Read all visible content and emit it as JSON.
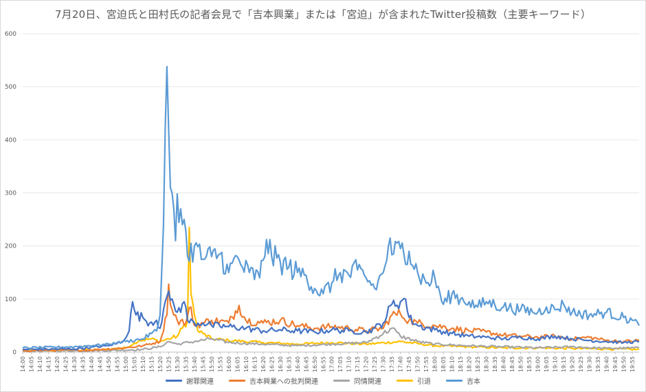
{
  "chart_data": {
    "type": "line",
    "title": "7月20日、宮迫氏と田村氏の記者会見で「吉本興業」または「宮迫」が含まれたTwitter投稿数（主要キーワード）",
    "xlabel": "",
    "ylabel": "",
    "ylim": [
      0,
      600
    ],
    "yticks": [
      "0",
      "100",
      "200",
      "300",
      "400",
      "500",
      "600"
    ],
    "grid": true,
    "legend_position": "bottom",
    "x_time_range": [
      "14:00",
      "19:59"
    ],
    "x_tick_step_minutes": 5,
    "x_tick_labels": [
      "14:00",
      "14:05",
      "14:10",
      "14:15",
      "14:20",
      "14:25",
      "14:30",
      "14:35",
      "14:40",
      "14:45",
      "14:50",
      "14:55",
      "15:00",
      "15:05",
      "15:10",
      "15:15",
      "15:20",
      "15:25",
      "15:30",
      "15:35",
      "15:40",
      "15:45",
      "15:50",
      "15:55",
      "16:00",
      "16:05",
      "16:10",
      "16:15",
      "16:20",
      "16:25",
      "16:30",
      "16:35",
      "16:40",
      "16:45",
      "16:50",
      "16:55",
      "17:00",
      "17:05",
      "17:10",
      "17:15",
      "17:20",
      "17:25",
      "17:30",
      "17:35",
      "17:40",
      "17:45",
      "17:50",
      "17:55",
      "18:00",
      "18:05",
      "18:10",
      "18:15",
      "18:20",
      "18:25",
      "18:30",
      "18:35",
      "18:40",
      "18:45",
      "18:50",
      "18:55",
      "19:00",
      "19:05",
      "19:10",
      "19:15",
      "19:20",
      "19:25",
      "19:30",
      "19:35",
      "19:40",
      "19:45",
      "19:50",
      "19:55"
    ],
    "series": [
      {
        "name": "謝罪関連",
        "color": "#4472c4",
        "keypoints": [
          [
            "14:00",
            5
          ],
          [
            "14:30",
            6
          ],
          [
            "14:50",
            12
          ],
          [
            "14:58",
            20
          ],
          [
            "15:02",
            40
          ],
          [
            "15:04",
            95
          ],
          [
            "15:06",
            70
          ],
          [
            "15:10",
            65
          ],
          [
            "15:14",
            55
          ],
          [
            "15:18",
            60
          ],
          [
            "15:20",
            45
          ],
          [
            "15:22",
            80
          ],
          [
            "15:24",
            105
          ],
          [
            "15:26",
            98
          ],
          [
            "15:28",
            90
          ],
          [
            "15:30",
            75
          ],
          [
            "15:34",
            95
          ],
          [
            "15:36",
            60
          ],
          [
            "15:40",
            55
          ],
          [
            "15:45",
            55
          ],
          [
            "15:50",
            50
          ],
          [
            "16:00",
            48
          ],
          [
            "16:10",
            45
          ],
          [
            "16:20",
            40
          ],
          [
            "16:30",
            42
          ],
          [
            "16:40",
            40
          ],
          [
            "16:50",
            38
          ],
          [
            "17:00",
            42
          ],
          [
            "17:10",
            40
          ],
          [
            "17:20",
            38
          ],
          [
            "17:25",
            45
          ],
          [
            "17:30",
            55
          ],
          [
            "17:35",
            90
          ],
          [
            "17:40",
            95
          ],
          [
            "17:43",
            100
          ],
          [
            "17:45",
            65
          ],
          [
            "17:50",
            50
          ],
          [
            "18:00",
            42
          ],
          [
            "18:10",
            35
          ],
          [
            "18:20",
            30
          ],
          [
            "18:30",
            28
          ],
          [
            "18:40",
            25
          ],
          [
            "18:50",
            28
          ],
          [
            "19:00",
            25
          ],
          [
            "19:10",
            30
          ],
          [
            "19:20",
            25
          ],
          [
            "19:30",
            22
          ],
          [
            "19:40",
            20
          ],
          [
            "19:50",
            18
          ],
          [
            "19:59",
            20
          ]
        ]
      },
      {
        "name": "吉本興業への批判関連",
        "color": "#ed7d31",
        "keypoints": [
          [
            "14:00",
            3
          ],
          [
            "14:40",
            4
          ],
          [
            "15:00",
            8
          ],
          [
            "15:10",
            12
          ],
          [
            "15:20",
            20
          ],
          [
            "15:24",
            70
          ],
          [
            "15:25",
            128
          ],
          [
            "15:27",
            80
          ],
          [
            "15:30",
            60
          ],
          [
            "15:35",
            55
          ],
          [
            "15:38",
            85
          ],
          [
            "15:40",
            50
          ],
          [
            "15:45",
            55
          ],
          [
            "15:50",
            60
          ],
          [
            "16:00",
            55
          ],
          [
            "16:06",
            88
          ],
          [
            "16:10",
            60
          ],
          [
            "16:20",
            55
          ],
          [
            "16:30",
            60
          ],
          [
            "16:40",
            50
          ],
          [
            "16:50",
            45
          ],
          [
            "17:00",
            48
          ],
          [
            "17:10",
            45
          ],
          [
            "17:20",
            40
          ],
          [
            "17:30",
            45
          ],
          [
            "17:35",
            70
          ],
          [
            "17:40",
            72
          ],
          [
            "17:45",
            60
          ],
          [
            "17:50",
            55
          ],
          [
            "18:00",
            50
          ],
          [
            "18:10",
            45
          ],
          [
            "18:20",
            40
          ],
          [
            "18:30",
            38
          ],
          [
            "18:40",
            32
          ],
          [
            "18:50",
            30
          ],
          [
            "19:00",
            28
          ],
          [
            "19:10",
            30
          ],
          [
            "19:20",
            25
          ],
          [
            "19:30",
            28
          ],
          [
            "19:40",
            22
          ],
          [
            "19:50",
            20
          ],
          [
            "19:59",
            22
          ]
        ]
      },
      {
        "name": "同情関連",
        "color": "#a5a5a5",
        "keypoints": [
          [
            "14:00",
            2
          ],
          [
            "14:50",
            3
          ],
          [
            "15:10",
            5
          ],
          [
            "15:20",
            10
          ],
          [
            "15:25",
            20
          ],
          [
            "15:30",
            15
          ],
          [
            "15:40",
            20
          ],
          [
            "15:50",
            25
          ],
          [
            "16:00",
            18
          ],
          [
            "16:20",
            15
          ],
          [
            "16:40",
            12
          ],
          [
            "17:00",
            15
          ],
          [
            "17:20",
            18
          ],
          [
            "17:30",
            35
          ],
          [
            "17:35",
            45
          ],
          [
            "17:40",
            30
          ],
          [
            "17:50",
            20
          ],
          [
            "18:00",
            15
          ],
          [
            "18:20",
            12
          ],
          [
            "18:40",
            10
          ],
          [
            "19:00",
            8
          ],
          [
            "19:20",
            10
          ],
          [
            "19:40",
            7
          ],
          [
            "19:59",
            8
          ]
        ]
      },
      {
        "name": "引退",
        "color": "#ffc000",
        "keypoints": [
          [
            "14:00",
            3
          ],
          [
            "14:45",
            4
          ],
          [
            "15:00",
            8
          ],
          [
            "15:08",
            22
          ],
          [
            "15:15",
            25
          ],
          [
            "15:20",
            20
          ],
          [
            "15:25",
            25
          ],
          [
            "15:30",
            30
          ],
          [
            "15:33",
            45
          ],
          [
            "15:36",
            60
          ],
          [
            "15:37",
            235
          ],
          [
            "15:38",
            110
          ],
          [
            "15:40",
            70
          ],
          [
            "15:42",
            40
          ],
          [
            "15:45",
            35
          ],
          [
            "15:50",
            25
          ],
          [
            "16:00",
            22
          ],
          [
            "16:20",
            18
          ],
          [
            "16:40",
            15
          ],
          [
            "17:00",
            18
          ],
          [
            "17:20",
            15
          ],
          [
            "17:40",
            20
          ],
          [
            "18:00",
            12
          ],
          [
            "18:20",
            10
          ],
          [
            "18:40",
            8
          ],
          [
            "19:00",
            8
          ],
          [
            "19:20",
            7
          ],
          [
            "19:40",
            6
          ],
          [
            "19:59",
            5
          ]
        ]
      },
      {
        "name": "吉本",
        "color": "#5b9bd5",
        "keypoints": [
          [
            "14:00",
            8
          ],
          [
            "14:30",
            10
          ],
          [
            "14:50",
            15
          ],
          [
            "15:00",
            20
          ],
          [
            "15:10",
            25
          ],
          [
            "15:15",
            35
          ],
          [
            "15:18",
            40
          ],
          [
            "15:20",
            70
          ],
          [
            "15:22",
            240
          ],
          [
            "15:23",
            420
          ],
          [
            "15:24",
            538
          ],
          [
            "15:25",
            420
          ],
          [
            "15:26",
            310
          ],
          [
            "15:27",
            300
          ],
          [
            "15:28",
            270
          ],
          [
            "15:29",
            210
          ],
          [
            "15:30",
            298
          ],
          [
            "15:32",
            270
          ],
          [
            "15:33",
            240
          ],
          [
            "15:34",
            250
          ],
          [
            "15:36",
            180
          ],
          [
            "15:40",
            200
          ],
          [
            "15:45",
            175
          ],
          [
            "15:50",
            180
          ],
          [
            "15:55",
            185
          ],
          [
            "16:00",
            150
          ],
          [
            "16:05",
            180
          ],
          [
            "16:08",
            160
          ],
          [
            "16:12",
            150
          ],
          [
            "16:18",
            140
          ],
          [
            "16:22",
            212
          ],
          [
            "16:25",
            180
          ],
          [
            "16:30",
            170
          ],
          [
            "16:35",
            160
          ],
          [
            "16:40",
            150
          ],
          [
            "16:45",
            145
          ],
          [
            "16:50",
            120
          ],
          [
            "16:55",
            110
          ],
          [
            "17:00",
            130
          ],
          [
            "17:05",
            150
          ],
          [
            "17:10",
            145
          ],
          [
            "17:15",
            155
          ],
          [
            "17:20",
            140
          ],
          [
            "17:25",
            120
          ],
          [
            "17:30",
            150
          ],
          [
            "17:33",
            200
          ],
          [
            "17:36",
            185
          ],
          [
            "17:40",
            195
          ],
          [
            "17:45",
            190
          ],
          [
            "17:50",
            150
          ],
          [
            "17:55",
            130
          ],
          [
            "18:00",
            140
          ],
          [
            "18:05",
            90
          ],
          [
            "18:10",
            110
          ],
          [
            "18:15",
            100
          ],
          [
            "18:20",
            95
          ],
          [
            "18:25",
            85
          ],
          [
            "18:30",
            95
          ],
          [
            "18:40",
            85
          ],
          [
            "18:50",
            80
          ],
          [
            "19:00",
            75
          ],
          [
            "19:05",
            85
          ],
          [
            "19:10",
            80
          ],
          [
            "19:15",
            90
          ],
          [
            "19:20",
            75
          ],
          [
            "19:30",
            70
          ],
          [
            "19:40",
            75
          ],
          [
            "19:50",
            65
          ],
          [
            "19:55",
            60
          ],
          [
            "19:59",
            50
          ]
        ]
      }
    ]
  }
}
